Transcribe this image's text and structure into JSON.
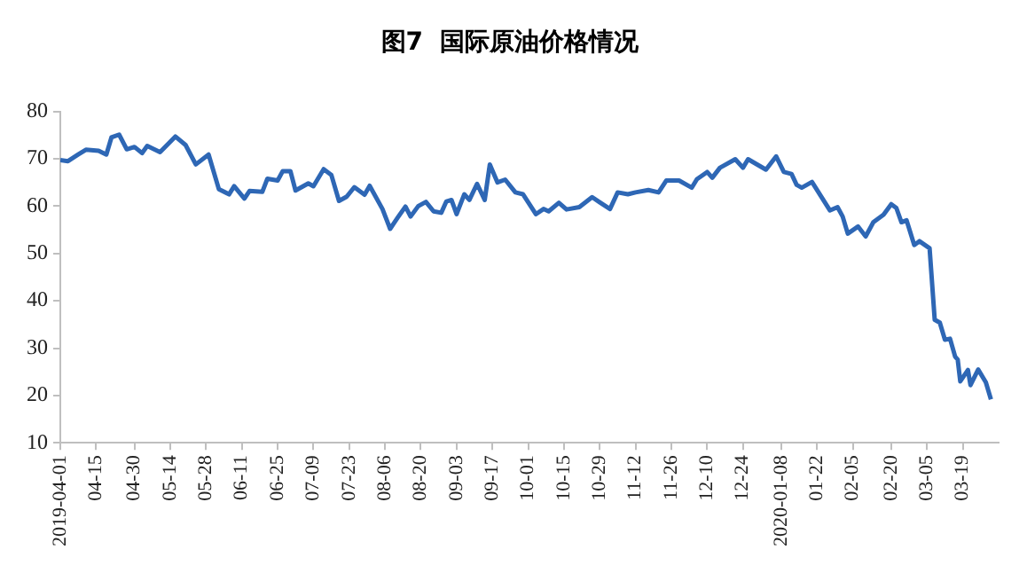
{
  "chart_data": {
    "type": "line",
    "title": "图7  国际原油价格情况",
    "x": [
      "2019-04-01",
      "2019-04-04",
      "2019-04-08",
      "2019-04-11",
      "2019-04-16",
      "2019-04-19",
      "2019-04-21",
      "2019-04-24",
      "2019-04-27",
      "2019-04-30",
      "2019-05-03",
      "2019-05-05",
      "2019-05-10",
      "2019-05-16",
      "2019-05-20",
      "2019-05-24",
      "2019-05-29",
      "2019-06-02",
      "2019-06-06",
      "2019-06-08",
      "2019-06-12",
      "2019-06-14",
      "2019-06-19",
      "2019-06-21",
      "2019-06-25",
      "2019-06-27",
      "2019-06-30",
      "2019-07-02",
      "2019-07-07",
      "2019-07-09",
      "2019-07-13",
      "2019-07-16",
      "2019-07-19",
      "2019-07-22",
      "2019-07-25",
      "2019-07-29",
      "2019-07-31",
      "2019-08-05",
      "2019-08-08",
      "2019-08-11",
      "2019-08-14",
      "2019-08-16",
      "2019-08-19",
      "2019-08-22",
      "2019-08-25",
      "2019-08-28",
      "2019-08-30",
      "2019-09-01",
      "2019-09-03",
      "2019-09-06",
      "2019-09-08",
      "2019-09-11",
      "2019-09-14",
      "2019-09-16",
      "2019-09-19",
      "2019-09-22",
      "2019-09-26",
      "2019-09-29",
      "2019-10-04",
      "2019-10-07",
      "2019-10-09",
      "2019-10-13",
      "2019-10-16",
      "2019-10-21",
      "2019-10-26",
      "2019-10-29",
      "2019-11-02",
      "2019-11-05",
      "2019-11-09",
      "2019-11-12",
      "2019-11-17",
      "2019-11-21",
      "2019-11-24",
      "2019-11-29",
      "2019-12-04",
      "2019-12-06",
      "2019-12-10",
      "2019-12-12",
      "2019-12-15",
      "2019-12-21",
      "2019-12-24",
      "2019-12-26",
      "2020-01-02",
      "2020-01-06",
      "2020-01-09",
      "2020-01-12",
      "2020-01-14",
      "2020-01-16",
      "2020-01-20",
      "2020-01-27",
      "2020-01-30",
      "2020-02-01",
      "2020-02-03",
      "2020-02-07",
      "2020-02-10",
      "2020-02-13",
      "2020-02-17",
      "2020-02-20",
      "2020-02-22",
      "2020-02-24",
      "2020-02-26",
      "2020-02-29",
      "2020-03-02",
      "2020-03-06",
      "2020-03-08",
      "2020-03-10",
      "2020-03-12",
      "2020-03-14",
      "2020-03-16",
      "2020-03-17",
      "2020-03-18",
      "2020-03-21",
      "2020-03-22",
      "2020-03-25",
      "2020-03-28",
      "2020-03-30"
    ],
    "series": [
      {
        "color": "#2e67b5",
        "values": [
          69.7,
          69.5,
          70.9,
          71.9,
          71.7,
          70.9,
          74.5,
          75.1,
          72.0,
          72.5,
          71.2,
          72.7,
          71.4,
          74.7,
          72.9,
          68.8,
          70.9,
          63.6,
          62.5,
          64.2,
          61.6,
          63.2,
          63.0,
          65.8,
          65.4,
          67.4,
          67.4,
          63.3,
          64.8,
          64.2,
          67.8,
          66.6,
          61.1,
          62.0,
          64.0,
          62.4,
          64.3,
          59.4,
          55.2,
          57.6,
          59.9,
          57.8,
          60.0,
          60.9,
          58.9,
          58.6,
          61.0,
          61.3,
          58.3,
          62.5,
          61.3,
          64.7,
          61.3,
          68.8,
          65.0,
          65.6,
          62.9,
          62.5,
          58.3,
          59.4,
          58.9,
          60.7,
          59.3,
          59.8,
          61.9,
          60.8,
          59.4,
          62.9,
          62.5,
          62.9,
          63.4,
          62.9,
          65.4,
          65.4,
          63.9,
          65.7,
          67.2,
          66.0,
          68.1,
          69.9,
          68.1,
          69.9,
          67.7,
          70.5,
          67.2,
          66.8,
          64.5,
          63.9,
          65.1,
          59.1,
          59.8,
          57.8,
          54.2,
          55.7,
          53.6,
          56.6,
          58.2,
          60.4,
          59.6,
          56.6,
          57.0,
          51.8,
          52.6,
          51.1,
          36.0,
          35.4,
          31.8,
          32.0,
          28.2,
          27.6,
          23.0,
          25.4,
          22.2,
          25.5,
          22.8,
          19.2
        ]
      }
    ],
    "xlim": [
      "2019-04-01",
      "2020-04-02"
    ],
    "xticks": [
      {
        "value": "2019-04-01",
        "label": "2019-04-01"
      },
      {
        "value": "2019-04-15",
        "label": "04-15"
      },
      {
        "value": "2019-04-30",
        "label": "04-30"
      },
      {
        "value": "2019-05-14",
        "label": "05-14"
      },
      {
        "value": "2019-05-28",
        "label": "05-28"
      },
      {
        "value": "2019-06-11",
        "label": "06-11"
      },
      {
        "value": "2019-06-25",
        "label": "06-25"
      },
      {
        "value": "2019-07-09",
        "label": "07-09"
      },
      {
        "value": "2019-07-23",
        "label": "07-23"
      },
      {
        "value": "2019-08-06",
        "label": "08-06"
      },
      {
        "value": "2019-08-20",
        "label": "08-20"
      },
      {
        "value": "2019-09-03",
        "label": "09-03"
      },
      {
        "value": "2019-09-17",
        "label": "09-17"
      },
      {
        "value": "2019-10-01",
        "label": "10-01"
      },
      {
        "value": "2019-10-15",
        "label": "10-15"
      },
      {
        "value": "2019-10-29",
        "label": "10-29"
      },
      {
        "value": "2019-11-12",
        "label": "11-12"
      },
      {
        "value": "2019-11-26",
        "label": "11-26"
      },
      {
        "value": "2019-12-10",
        "label": "12-10"
      },
      {
        "value": "2019-12-24",
        "label": "12-24"
      },
      {
        "value": "2020-01-08",
        "label": "2020-01-08"
      },
      {
        "value": "2020-01-22",
        "label": "01-22"
      },
      {
        "value": "2020-02-05",
        "label": "02-05"
      },
      {
        "value": "2020-02-20",
        "label": "02-20"
      },
      {
        "value": "2020-03-05",
        "label": "03-05"
      },
      {
        "value": "2020-03-19",
        "label": "03-19"
      }
    ],
    "ylim": [
      10,
      80
    ],
    "yticks": [
      10,
      20,
      30,
      40,
      50,
      60,
      70,
      80
    ],
    "grid": false,
    "legend": false,
    "marker": "none",
    "line_style": "solid"
  }
}
